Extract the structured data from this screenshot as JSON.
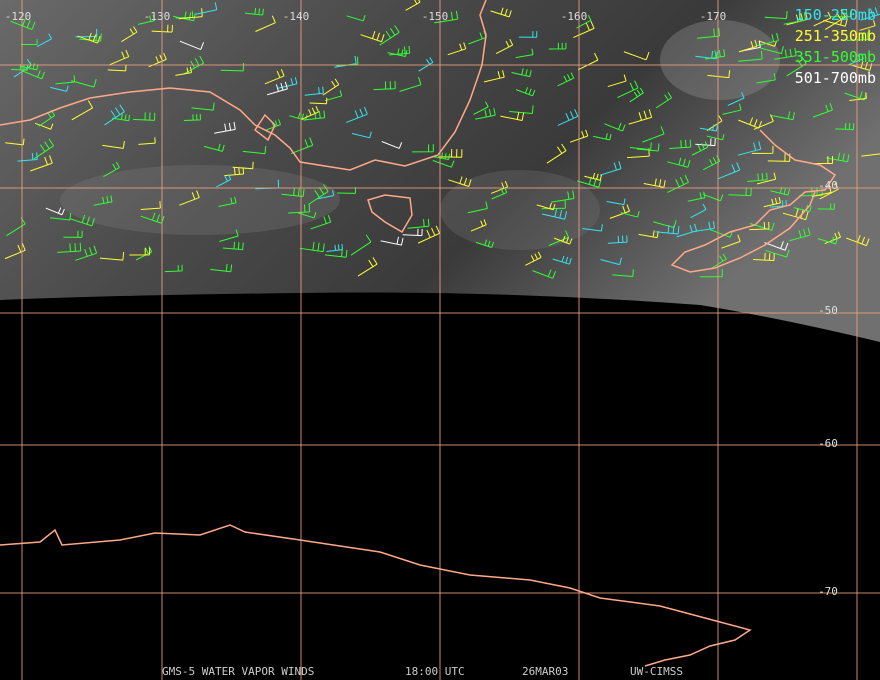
{
  "map": {
    "longitude_labels": [
      "-120",
      "-130",
      "-140",
      "-150",
      "-160",
      "-170"
    ],
    "latitude_labels": [
      "-40",
      "-50",
      "-60",
      "-70"
    ],
    "legend": [
      {
        "label": "150-250mb",
        "color": "#33e6f0"
      },
      {
        "label": "251-350mb",
        "color": "#ffff33"
      },
      {
        "label": "351-500mb",
        "color": "#33ff33"
      },
      {
        "label": "501-700mb",
        "color": "#ffffff"
      }
    ],
    "footer": [
      "GMS-5 WATER VAPOR WINDS",
      "18:00 UTC",
      "26MAR03",
      "UW-CIMSS"
    ]
  }
}
